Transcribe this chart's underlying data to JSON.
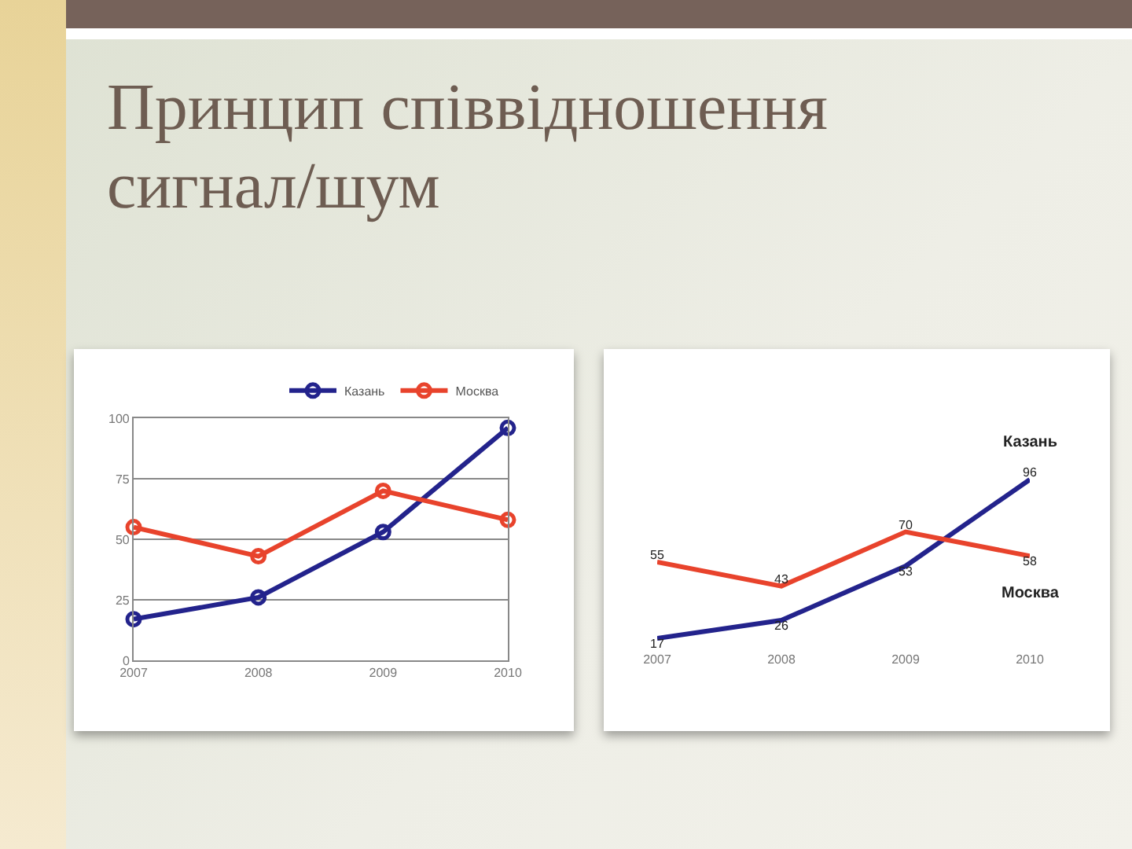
{
  "chart_data": [
    {
      "type": "line",
      "title": "Принцип співвідношення сигнал/шум",
      "x": [
        2007,
        2008,
        2009,
        2010
      ],
      "xlim": [
        2007,
        2010
      ],
      "xticks": [
        2007,
        2008,
        2009,
        2010
      ],
      "ylim": [
        0,
        100
      ],
      "yticks": [
        0,
        25,
        50,
        75,
        100
      ],
      "series": [
        {
          "name": "Казань",
          "color": "#23238c",
          "values": [
            17,
            26,
            53,
            96
          ]
        },
        {
          "name": "Москва",
          "color": "#e8432c",
          "values": [
            55,
            43,
            70,
            58
          ]
        }
      ],
      "grid": "y",
      "legend": "top right",
      "marker": "circle"
    },
    {
      "type": "line",
      "x": [
        2007,
        2008,
        2009,
        2010
      ],
      "xlim": [
        2007,
        2010
      ],
      "xticks": [
        2007,
        2008,
        2009,
        2010
      ],
      "series": [
        {
          "name": "Казань",
          "color": "#23238c",
          "values": [
            17,
            26,
            53,
            96
          ]
        },
        {
          "name": "Москва",
          "color": "#e8432c",
          "values": [
            55,
            43,
            70,
            58
          ]
        }
      ],
      "data_labels": true,
      "legend": false,
      "tick_labels": "x"
    }
  ]
}
